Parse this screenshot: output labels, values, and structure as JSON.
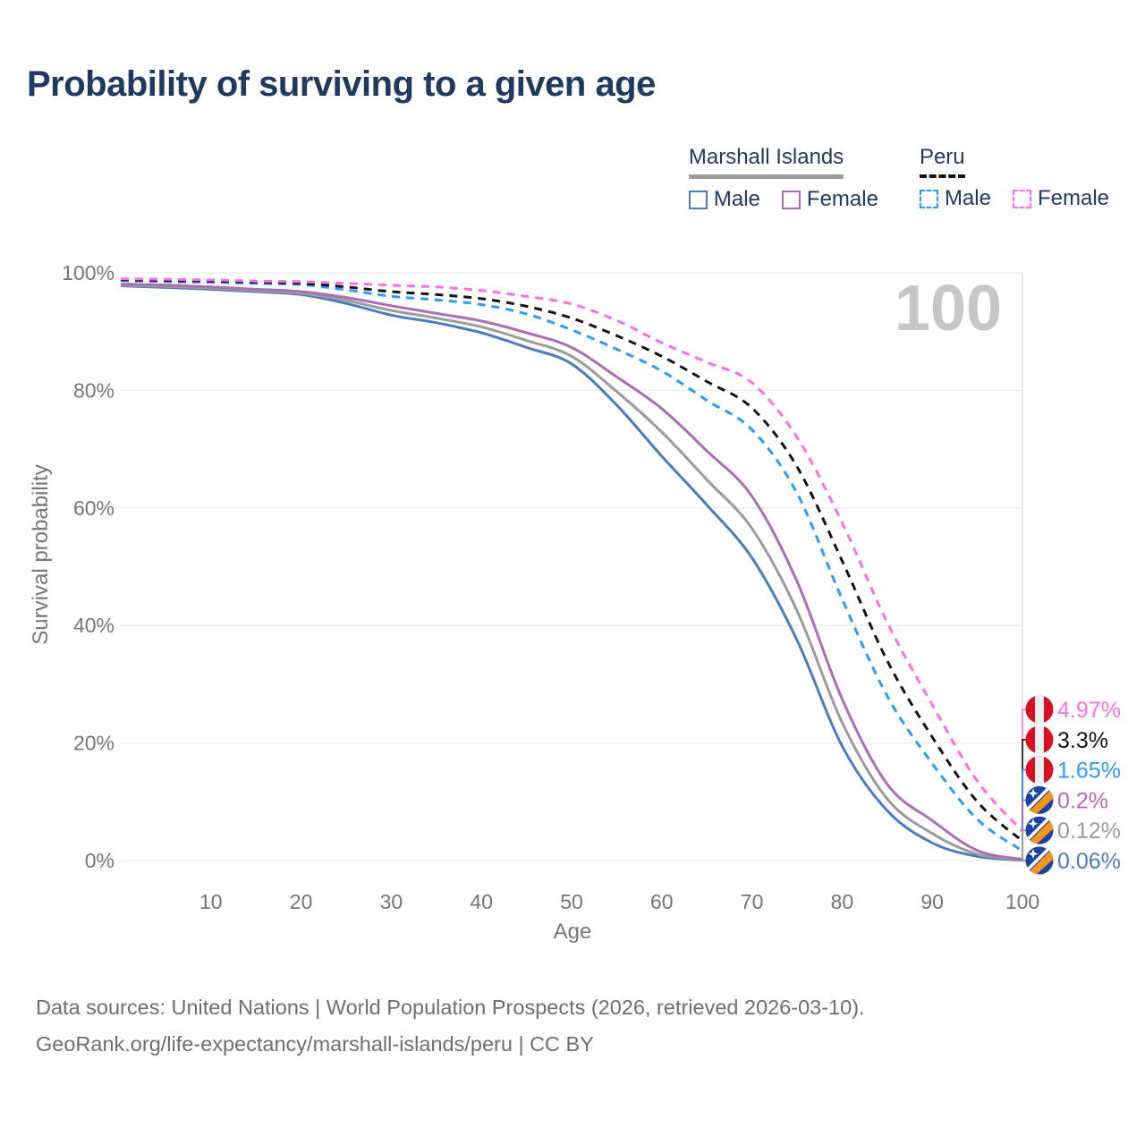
{
  "header": {
    "title": "Probability of surviving to a given age"
  },
  "legend": {
    "groups": [
      {
        "title": "Marshall Islands",
        "underline_style": "solid",
        "underline_color": "#9b9b9b",
        "items": [
          {
            "label": "Male",
            "swatch_style": "solid",
            "color": "#4b7cc0"
          },
          {
            "label": "Female",
            "swatch_style": "solid",
            "color": "#ab6db4"
          }
        ]
      },
      {
        "title": "Peru",
        "underline_style": "dashed",
        "underline_color": "#141414",
        "items": [
          {
            "label": "Male",
            "swatch_style": "dashed",
            "color": "#2e9bf5"
          },
          {
            "label": "Female",
            "swatch_style": "dashed",
            "color": "#ff6fe3"
          }
        ]
      }
    ]
  },
  "chart_data": {
    "type": "line",
    "title": "Probability of surviving to a given age",
    "xlabel": "Age",
    "ylabel": "Survival probability",
    "xlim": [
      0,
      100
    ],
    "ylim": [
      0,
      100
    ],
    "grid": "horizontal",
    "legend_position": "top-right",
    "watermark": "100",
    "x_ticks": [
      10,
      20,
      30,
      40,
      50,
      60,
      70,
      80,
      90,
      100
    ],
    "y_tick_values": [
      0,
      20,
      40,
      60,
      80,
      100
    ],
    "y_tick_labels": [
      "0%",
      "20%",
      "40%",
      "60%",
      "80%",
      "100%"
    ],
    "x": [
      0,
      5,
      10,
      15,
      20,
      25,
      30,
      35,
      40,
      45,
      50,
      55,
      60,
      65,
      70,
      75,
      80,
      85,
      90,
      95,
      100
    ],
    "series": [
      {
        "name": "Marshall Islands Male",
        "country": "Marshall Islands",
        "sex": "Male",
        "line": "solid",
        "color": "#4b7cc0",
        "flag": "marshall-islands",
        "end_label": "0.06%",
        "values": [
          97.8,
          97.5,
          97.2,
          96.8,
          96.3,
          94.8,
          92.8,
          91.5,
          89.8,
          87.3,
          84.5,
          77.5,
          68.8,
          60.5,
          51.5,
          37.5,
          19.5,
          8.5,
          3.0,
          0.7,
          0.06
        ]
      },
      {
        "name": "Marshall Islands",
        "country": "Marshall Islands",
        "sex": "",
        "line": "solid",
        "color": "#9b9b9b",
        "flag": "marshall-islands",
        "end_label": "0.12%",
        "values": [
          97.9,
          97.7,
          97.4,
          97.0,
          96.5,
          95.3,
          93.6,
          92.3,
          90.8,
          88.5,
          85.8,
          79.8,
          72.9,
          64.8,
          56.5,
          42.5,
          23.5,
          10.5,
          4.6,
          1.1,
          0.12
        ]
      },
      {
        "name": "Marshall Islands Female",
        "country": "Marshall Islands",
        "sex": "Female",
        "line": "solid",
        "color": "#ab6db4",
        "flag": "marshall-islands",
        "end_label": "0.2%",
        "values": [
          98.1,
          97.9,
          97.6,
          97.2,
          96.8,
          95.8,
          94.4,
          93.1,
          91.8,
          89.8,
          87.3,
          82.3,
          76.9,
          69.7,
          62.0,
          47.5,
          27.5,
          13.0,
          6.8,
          1.7,
          0.2
        ]
      },
      {
        "name": "Peru Male",
        "country": "Peru",
        "sex": "Male",
        "line": "dashed",
        "color": "#2e9bf5",
        "flag": "peru",
        "end_label": "1.65%",
        "values": [
          98.7,
          98.5,
          98.4,
          98.2,
          98.0,
          97.1,
          96.0,
          95.4,
          94.6,
          93.0,
          90.3,
          87.0,
          83.3,
          78.3,
          73.3,
          62.5,
          44.5,
          28.0,
          16.5,
          7.0,
          1.65
        ]
      },
      {
        "name": "Peru",
        "country": "Peru",
        "sex": "",
        "line": "dashed",
        "color": "#141414",
        "flag": "peru",
        "end_label": "3.3%",
        "values": [
          98.8,
          98.7,
          98.6,
          98.4,
          98.2,
          97.6,
          96.8,
          96.3,
          95.6,
          94.3,
          92.3,
          89.3,
          85.8,
          81.5,
          77.0,
          67.0,
          51.0,
          34.0,
          21.0,
          10.0,
          3.3
        ]
      },
      {
        "name": "Peru Female",
        "country": "Peru",
        "sex": "Female",
        "line": "dashed",
        "color": "#ff6fe3",
        "flag": "peru",
        "end_label": "4.97%",
        "values": [
          99.0,
          98.9,
          98.8,
          98.6,
          98.5,
          98.2,
          97.9,
          97.6,
          97.0,
          96.0,
          94.7,
          91.9,
          88.1,
          84.8,
          81.3,
          72.0,
          57.5,
          40.5,
          26.5,
          13.5,
          4.97
        ]
      }
    ],
    "colors": {
      "grid": "#ececec",
      "crosshair": "#dcdcdc",
      "tick_text": "#757575",
      "watermark": "#c6c6c6",
      "peru_flag_red": "#d91023",
      "marshall_flag_blue": "#1a44a3",
      "marshall_flag_orange": "#f5941e"
    }
  },
  "footer": {
    "line1": "Data sources: United Nations | World Population Prospects (2026, retrieved 2026-03-10).",
    "line2": "GeoRank.org/life-expectancy/marshall-islands/peru | CC BY"
  }
}
